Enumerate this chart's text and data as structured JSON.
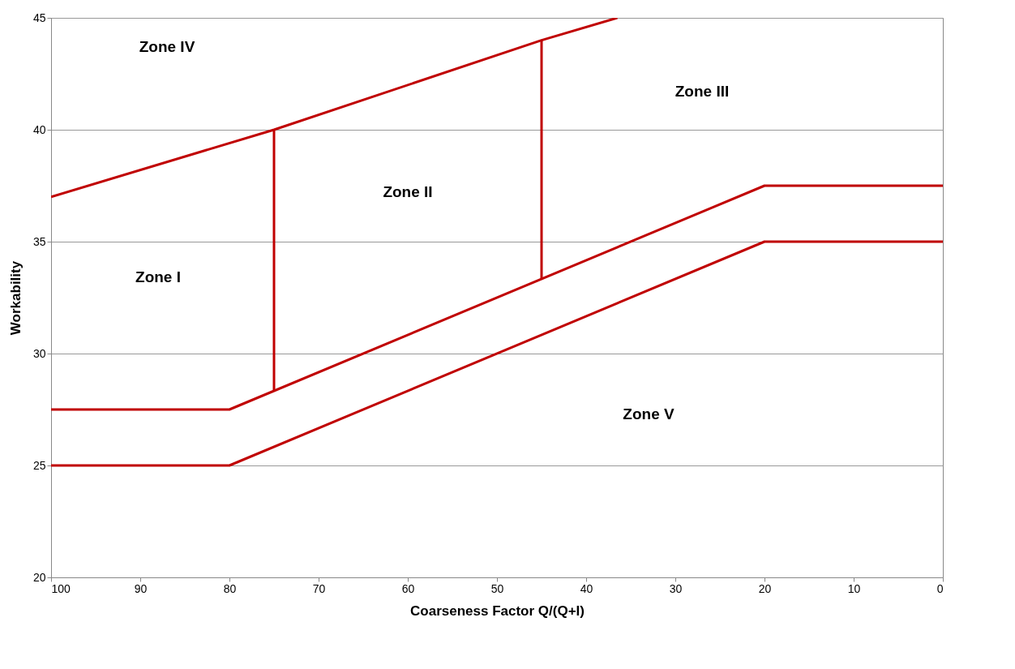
{
  "chart_data": {
    "type": "line",
    "xlabel": "Coarseness Factor Q/(Q+I)",
    "ylabel": "Workability",
    "xlim": [
      100,
      0
    ],
    "ylim": [
      20,
      45
    ],
    "xticks": [
      100,
      90,
      80,
      70,
      60,
      50,
      40,
      30,
      20,
      10,
      0
    ],
    "yticks": [
      20,
      25,
      30,
      35,
      40,
      45
    ],
    "grid": "y",
    "marker": "none",
    "line_style": "solid",
    "series": [
      {
        "color": "#c00000",
        "x": [
          100,
          75,
          45,
          36.5
        ],
        "values": [
          37,
          40,
          44,
          45
        ]
      },
      {
        "color": "#c00000",
        "x": [
          100,
          80,
          20,
          0
        ],
        "values": [
          27.5,
          27.5,
          37.5,
          37.5
        ]
      },
      {
        "color": "#c00000",
        "x": [
          100,
          80,
          20,
          0
        ],
        "values": [
          25,
          25,
          35,
          35
        ]
      },
      {
        "color": "#c00000",
        "x": [
          75,
          75
        ],
        "values": [
          28.3,
          40
        ]
      },
      {
        "color": "#c00000",
        "x": [
          45,
          45
        ],
        "values": [
          33.3,
          44
        ]
      }
    ],
    "annotations": [
      "Zone IV",
      "Zone III",
      "Zone II",
      "Zone I",
      "Zone V"
    ]
  }
}
